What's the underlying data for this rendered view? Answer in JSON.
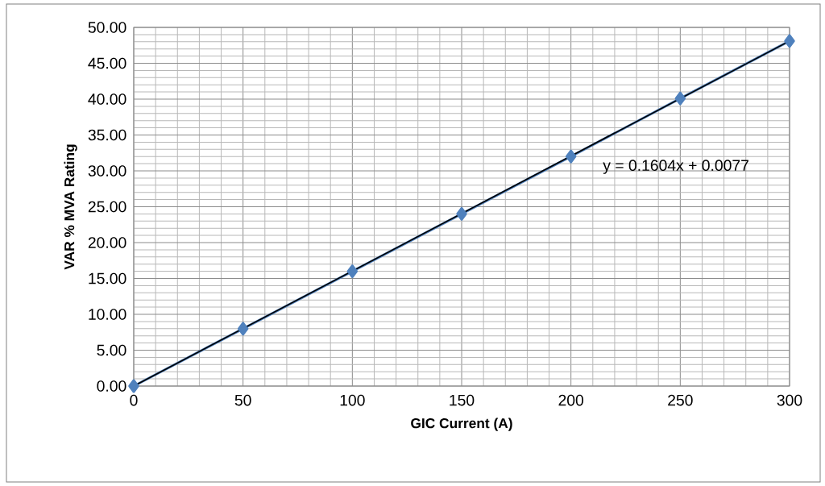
{
  "chart_data": {
    "type": "line",
    "xlabel": "GIC Current (A)",
    "ylabel": "VAR  % MVA Rating",
    "x": [
      0,
      50,
      100,
      150,
      200,
      250,
      300
    ],
    "series": [
      {
        "color": "#4f81bd",
        "marker": "diamond",
        "values": [
          0.0,
          8.0,
          16.0,
          24.0,
          32.0,
          40.1,
          48.1
        ]
      },
      {
        "color": "#000000",
        "marker": "none",
        "x": [
          0,
          300
        ],
        "values": [
          0.0,
          48.1
        ]
      }
    ],
    "xlim": [
      0,
      300
    ],
    "xticks": [
      0,
      50,
      100,
      150,
      200,
      250,
      300
    ],
    "ylim": [
      0,
      50
    ],
    "yticks": [
      {
        "value": 0,
        "label": "0.00"
      },
      {
        "value": 5,
        "label": "5.00"
      },
      {
        "value": 10,
        "label": "10.00"
      },
      {
        "value": 15,
        "label": "15.00"
      },
      {
        "value": 20,
        "label": "20.00"
      },
      {
        "value": 25,
        "label": "25.00"
      },
      {
        "value": 30,
        "label": "30.00"
      },
      {
        "value": 35,
        "label": "35.00"
      },
      {
        "value": 40,
        "label": "40.00"
      },
      {
        "value": 45,
        "label": "45.00"
      },
      {
        "value": 50,
        "label": "50.00"
      }
    ],
    "grid": true,
    "annotations": [
      "y = 0.1604x + 0.0077"
    ]
  }
}
